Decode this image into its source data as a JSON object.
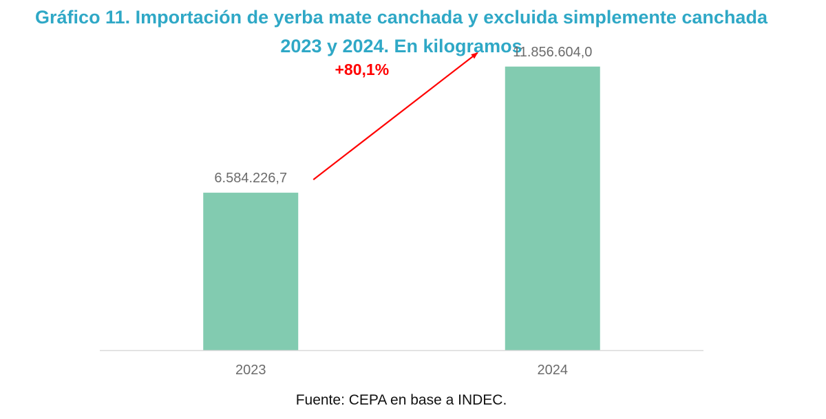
{
  "chart_data": {
    "type": "bar",
    "title_line1": "Gráfico 11. Importación de yerba mate canchada y excluida simplemente canchada",
    "title_line2": "2023 y 2024. En kilogramos",
    "categories": [
      "2023",
      "2024"
    ],
    "values": [
      6584226.7,
      11856604.0
    ],
    "value_labels": [
      "6.584.226,7",
      "11.856.604,0"
    ],
    "ylim": [
      0,
      13000000
    ],
    "grid": false,
    "bar_color": "#82cbb0",
    "annotation": {
      "text": "+80,1%",
      "color": "#ff0000"
    }
  },
  "source_note": "Fuente: CEPA en base a INDEC.",
  "colors": {
    "title": "#2fa8c6",
    "axis_line": "#d9d9d9"
  }
}
